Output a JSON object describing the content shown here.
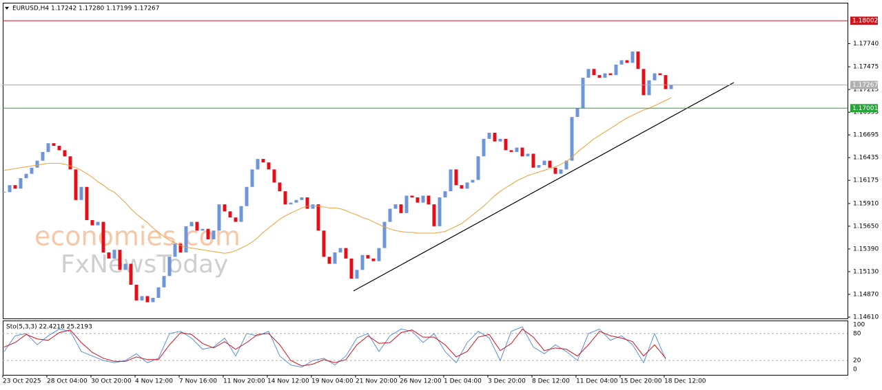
{
  "chart_data": [
    {
      "type": "candlestick",
      "title": "EURUSD,H4  1.17242 1.17280 1.17199 1.17267",
      "ylim": [
        1.14594,
        1.18208
      ],
      "yticks": [
        {
          "value": 1.1774,
          "label": "1.17740"
        },
        1.17475,
        1.17215,
        1.16955,
        1.16695,
        1.16435,
        1.16175,
        {
          "value": 1.1591,
          "label": "1.15910"
        },
        {
          "value": 1.1565,
          "label": "1.15650"
        },
        {
          "value": 1.1539,
          "label": "1.15390"
        },
        {
          "value": 1.1513,
          "label": "1.15130"
        },
        {
          "value": 1.1487,
          "label": "1.14870"
        },
        {
          "value": 1.1461,
          "label": "1.14610"
        }
      ],
      "up_color": "#6f95d9",
      "down_color": "#e3101b",
      "close": [
        1.1604,
        1.1612,
        1.1608,
        1.162,
        1.1625,
        1.1632,
        1.164,
        1.165,
        1.166,
        1.1657,
        1.1652,
        1.1645,
        1.163,
        1.1595,
        1.161,
        1.1572,
        1.1566,
        1.157,
        1.1535,
        1.1528,
        1.1538,
        1.1515,
        1.1522,
        1.1498,
        1.148,
        1.1485,
        1.1478,
        1.1483,
        1.1495,
        1.1508,
        1.153,
        1.1545,
        1.1535,
        1.1565,
        1.157,
        1.156,
        1.1562,
        1.155,
        1.156,
        1.159,
        1.1582,
        1.1575,
        1.157,
        1.1588,
        1.161,
        1.163,
        1.1642,
        1.1638,
        1.163,
        1.1615,
        1.1605,
        1.159,
        1.1592,
        1.1595,
        1.1598,
        1.1585,
        1.159,
        1.156,
        1.153,
        1.1522,
        1.1535,
        1.154,
        1.1528,
        1.1505,
        1.1515,
        1.1532,
        1.1528,
        1.1525,
        1.154,
        1.157,
        1.1585,
        1.159,
        1.158,
        1.16,
        1.1598,
        1.1592,
        1.16,
        1.159,
        1.1565,
        1.1598,
        1.1605,
        1.163,
        1.1612,
        1.1608,
        1.1615,
        1.1618,
        1.1645,
        1.1665,
        1.1672,
        1.1662,
        1.1665,
        1.1652,
        1.165,
        1.1655,
        1.1645,
        1.1648,
        1.1632,
        1.1635,
        1.164,
        1.1632,
        1.1625,
        1.163,
        1.164,
        1.169,
        1.17,
        1.1735,
        1.1745,
        1.1738,
        1.1735,
        1.174,
        1.1738,
        1.175,
        1.1755,
        1.1752,
        1.1765,
        1.1745,
        1.1715,
        1.1732,
        1.174,
        1.1738,
        1.1722,
        1.17267
      ],
      "ma": {
        "color": "#f0a030",
        "values": [
          1.1629,
          1.163,
          1.1631,
          1.1632,
          1.1633,
          1.1634,
          1.1635,
          1.1636,
          1.1637,
          1.1637,
          1.1637,
          1.1636,
          1.1634,
          1.1632,
          1.1629,
          1.1625,
          1.1621,
          1.1616,
          1.1612,
          1.1607,
          1.1604,
          1.1598,
          1.1592,
          1.1585,
          1.1579,
          1.1574,
          1.1569,
          1.1563,
          1.1558,
          1.1553,
          1.1549,
          1.1546,
          1.1543,
          1.1541,
          1.154,
          1.1539,
          1.1538,
          1.1537,
          1.1536,
          1.1535,
          1.1534,
          1.1535,
          1.1537,
          1.154,
          1.1543,
          1.1547,
          1.1552,
          1.1558,
          1.1563,
          1.1568,
          1.1573,
          1.1577,
          1.158,
          1.1583,
          1.1586,
          1.1588,
          1.1588,
          1.1588,
          1.1587,
          1.1586,
          1.1586,
          1.1585,
          1.1583,
          1.158,
          1.1578,
          1.1575,
          1.1573,
          1.157,
          1.1567,
          1.1564,
          1.1562,
          1.156,
          1.1559,
          1.1558,
          1.1558,
          1.1557,
          1.1557,
          1.1557,
          1.1557,
          1.1558,
          1.1559,
          1.1562,
          1.1565,
          1.1568,
          1.1573,
          1.1578,
          1.1583,
          1.1588,
          1.1594,
          1.16,
          1.1605,
          1.1609,
          1.1613,
          1.1617,
          1.162,
          1.1623,
          1.1625,
          1.1627,
          1.1629,
          1.1631,
          1.1633,
          1.1636,
          1.1639,
          1.1644,
          1.165,
          1.1655,
          1.166,
          1.1665,
          1.1669,
          1.1673,
          1.1677,
          1.1681,
          1.1685,
          1.1689,
          1.1692,
          1.1695,
          1.1698,
          1.17,
          1.1703,
          1.1706,
          1.1709,
          1.1712
        ]
      },
      "levels": [
        {
          "value": 1.18002,
          "color": "#d3131b"
        },
        {
          "value": 1.17267,
          "color": "#b0b0b0"
        },
        {
          "value": 1.17001,
          "color": "#27a33a"
        }
      ],
      "xlabels": [
        "23 Oct 2025",
        "28 Oct 04:00",
        "30 Oct 20:00",
        "4 Nov 12:00",
        "7 Nov 16:00",
        "11 Nov 20:00",
        "14 Nov 12:00",
        "19 Nov 04:00",
        "21 Nov 20:00",
        "26 Nov 12:00",
        "1 Dec 04:00",
        "3 Dec 20:00",
        "8 Dec 12:00",
        "11 Dec 04:00",
        "15 Dec 20:00",
        "18 Dec 12:00"
      ]
    },
    {
      "type": "line",
      "title": "Sto(5,3,3) 22.4218 25.2193",
      "ylim": [
        -12,
        109
      ],
      "yticks": [
        100,
        80,
        20,
        0
      ],
      "series": [
        {
          "color": "#5d8fdc",
          "values": [
            40,
            75,
            80,
            55,
            75,
            90,
            85,
            40,
            30,
            20,
            15,
            20,
            35,
            15,
            25,
            80,
            85,
            70,
            45,
            50,
            70,
            30,
            80,
            75,
            85,
            30,
            10,
            5,
            20,
            25,
            10,
            30,
            70,
            80,
            40,
            75,
            90,
            85,
            60,
            80,
            40,
            15,
            60,
            85,
            70,
            20,
            85,
            95,
            50,
            35,
            55,
            40,
            20,
            80,
            90,
            65,
            75,
            55,
            15,
            80,
            22.4218
          ]
        },
        {
          "color": "#d4121b",
          "values": [
            50,
            60,
            78,
            68,
            65,
            82,
            88,
            60,
            38,
            25,
            18,
            18,
            28,
            22,
            22,
            55,
            82,
            78,
            58,
            48,
            62,
            45,
            60,
            78,
            80,
            55,
            20,
            8,
            12,
            22,
            15,
            22,
            55,
            75,
            58,
            60,
            82,
            88,
            72,
            72,
            55,
            28,
            40,
            72,
            78,
            42,
            58,
            90,
            72,
            42,
            48,
            45,
            30,
            55,
            85,
            75,
            70,
            62,
            30,
            55,
            25.2193
          ]
        }
      ]
    }
  ],
  "watermark": [
    "economies.com",
    "FxNewsToday"
  ]
}
